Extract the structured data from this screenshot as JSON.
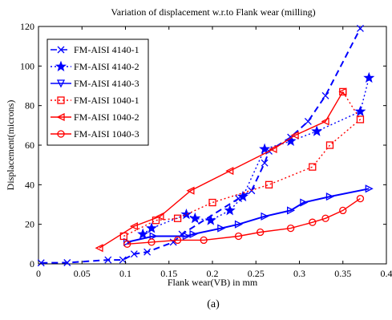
{
  "chart_data": {
    "type": "line",
    "title": "Variation of displacement w.r.to Flank wear (milling)",
    "xlabel": "Flank wear(VB) in mm",
    "ylabel": "Displacement(microns)",
    "xlim": [
      0,
      0.4
    ],
    "ylim": [
      0,
      120
    ],
    "xticks": [
      "0",
      "0.05",
      "0.1",
      "0.15",
      "0.2",
      "0.25",
      "0.3",
      "0.35",
      "0.4"
    ],
    "yticks": [
      "0",
      "20",
      "40",
      "60",
      "80",
      "100",
      "120"
    ],
    "grid": false,
    "legend_position": "top-left",
    "sublabel": "(a)",
    "series": [
      {
        "name": "FM-AISI 4140-1",
        "color": "#0000ff",
        "marker": "x",
        "dash": "8,5",
        "points": [
          [
            0.003,
            0.5
          ],
          [
            0.033,
            0.6
          ],
          [
            0.08,
            2
          ],
          [
            0.097,
            2
          ],
          [
            0.11,
            5
          ],
          [
            0.125,
            6
          ],
          [
            0.155,
            11
          ],
          [
            0.165,
            15
          ],
          [
            0.23,
            33
          ],
          [
            0.245,
            37
          ],
          [
            0.26,
            51
          ],
          [
            0.265,
            57
          ],
          [
            0.29,
            64
          ],
          [
            0.31,
            72
          ],
          [
            0.33,
            85
          ],
          [
            0.37,
            119
          ]
        ]
      },
      {
        "name": "FM-AISI 4140-2",
        "color": "#0000ff",
        "marker": "star",
        "dash": "2,3",
        "points": [
          [
            0.12,
            15
          ],
          [
            0.13,
            18
          ],
          [
            0.17,
            25
          ],
          [
            0.18,
            23
          ],
          [
            0.198,
            22
          ],
          [
            0.22,
            27
          ],
          [
            0.235,
            34
          ],
          [
            0.26,
            58
          ],
          [
            0.29,
            62
          ],
          [
            0.32,
            67
          ],
          [
            0.37,
            77
          ],
          [
            0.38,
            94
          ]
        ]
      },
      {
        "name": "FM-AISI 4140-3",
        "color": "#0000ff",
        "marker": "tri-right",
        "dash": "",
        "points": [
          [
            0.102,
            11
          ],
          [
            0.132,
            14
          ],
          [
            0.17,
            14
          ],
          [
            0.178,
            15
          ],
          [
            0.21,
            18
          ],
          [
            0.23,
            20
          ],
          [
            0.26,
            24
          ],
          [
            0.29,
            27
          ],
          [
            0.305,
            31
          ],
          [
            0.335,
            34
          ],
          [
            0.38,
            38
          ]
        ]
      },
      {
        "name": "FM-AISI 1040-1",
        "color": "#ff0000",
        "marker": "square",
        "dash": "2,3",
        "points": [
          [
            0.098,
            14
          ],
          [
            0.135,
            22
          ],
          [
            0.16,
            23
          ],
          [
            0.2,
            31
          ],
          [
            0.265,
            40
          ],
          [
            0.315,
            49
          ],
          [
            0.335,
            60
          ],
          [
            0.37,
            73
          ],
          [
            0.35,
            87
          ]
        ]
      },
      {
        "name": "FM-AISI 1040-2",
        "color": "#ff0000",
        "marker": "tri-left",
        "dash": "",
        "points": [
          [
            0.07,
            8
          ],
          [
            0.11,
            19
          ],
          [
            0.14,
            24
          ],
          [
            0.175,
            37
          ],
          [
            0.22,
            47
          ],
          [
            0.27,
            58
          ],
          [
            0.295,
            65
          ],
          [
            0.33,
            72
          ],
          [
            0.35,
            87
          ]
        ]
      },
      {
        "name": "FM-AISI 1040-3",
        "color": "#ff0000",
        "marker": "circle",
        "dash": "",
        "points": [
          [
            0.102,
            10
          ],
          [
            0.13,
            11
          ],
          [
            0.16,
            12
          ],
          [
            0.19,
            12
          ],
          [
            0.23,
            14
          ],
          [
            0.255,
            16
          ],
          [
            0.29,
            18
          ],
          [
            0.315,
            21
          ],
          [
            0.33,
            23
          ],
          [
            0.35,
            27
          ],
          [
            0.37,
            33
          ]
        ]
      }
    ]
  }
}
